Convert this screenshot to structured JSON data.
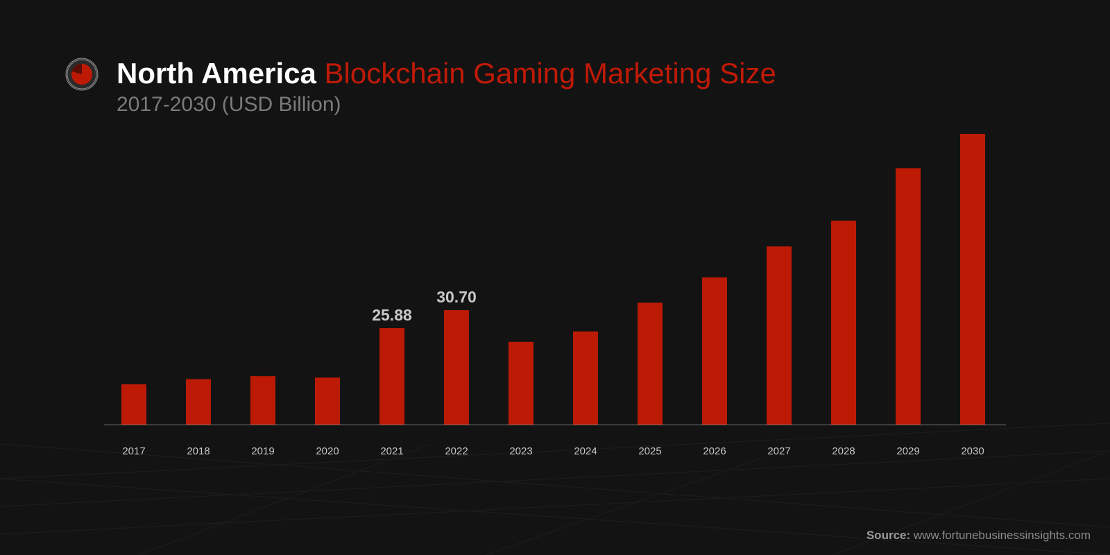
{
  "header": {
    "title_main": "North America",
    "title_accent": "Blockchain Gaming Marketing Size",
    "subtitle": "2017-2030 (USD Billion)"
  },
  "footer": {
    "source_label": "Source:",
    "source_text": "www.fortunebusinessinsights.com"
  },
  "colors": {
    "background": "#131313",
    "bar": "#bd1a06",
    "accent": "#c01a08"
  },
  "chart_data": {
    "type": "bar",
    "title": "North America Blockchain Gaming Marketing Size",
    "subtitle": "2017-2030 (USD Billion)",
    "xlabel": "",
    "ylabel": "",
    "grid": false,
    "ylim": [
      0,
      78
    ],
    "categories": [
      "2017",
      "2018",
      "2019",
      "2020",
      "2021",
      "2022",
      "2023",
      "2024",
      "2025",
      "2026",
      "2027",
      "2028",
      "2029",
      "2030"
    ],
    "values": [
      10.8,
      12.2,
      13.0,
      12.6,
      25.88,
      30.7,
      22.2,
      25.0,
      32.7,
      39.5,
      47.8,
      54.7,
      68.8,
      78.0
    ],
    "data_labels": [
      {
        "index": 4,
        "text": "25.88"
      },
      {
        "index": 5,
        "text": "30.70"
      }
    ]
  }
}
